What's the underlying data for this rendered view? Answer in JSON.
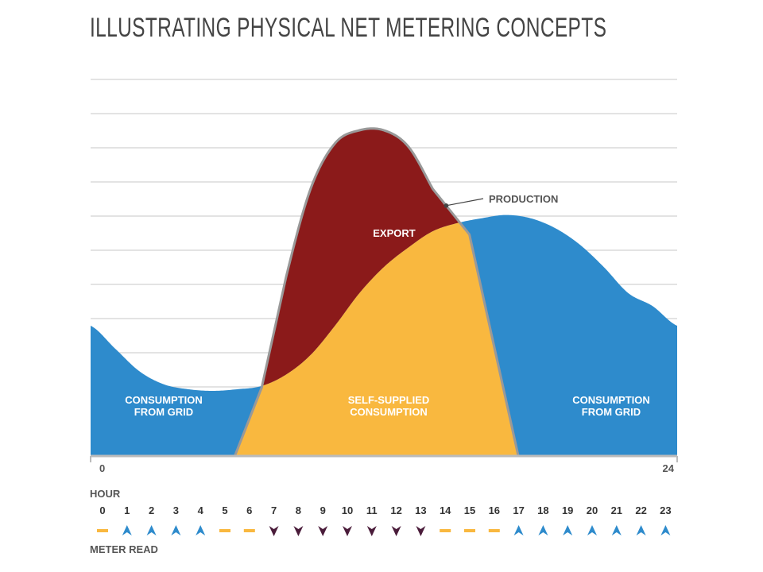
{
  "title": "ILLUSTRATING PHYSICAL NET METERING CONCEPTS",
  "chart_data": {
    "type": "area",
    "x_range": [
      0,
      24
    ],
    "x_start_label": "0",
    "x_end_label": "24",
    "gridlines": true,
    "series": [
      {
        "name": "CONSUMPTION",
        "x": [
          0,
          1,
          2,
          3,
          4,
          5,
          6,
          7,
          8,
          9,
          10,
          11,
          12,
          13,
          14,
          15,
          16,
          17,
          18,
          19,
          20,
          21,
          22,
          23,
          24
        ],
        "values": [
          40,
          33,
          26,
          22,
          20.5,
          20,
          20.5,
          21.5,
          25,
          31,
          40,
          50,
          58,
          64,
          69,
          71.5,
          73,
          74,
          73,
          70,
          65,
          58,
          50,
          46,
          40
        ]
      },
      {
        "name": "PRODUCTION",
        "x": [
          0,
          5.9,
          7,
          8,
          9,
          10,
          11,
          12,
          13,
          14,
          15.5,
          17.5,
          24
        ],
        "values": [
          0,
          0,
          21,
          55,
          82,
          96,
          100,
          100,
          95,
          82,
          68,
          0,
          0
        ]
      }
    ],
    "colors": {
      "consumption_from_grid": "#2e8bcc",
      "self_supplied": "#f9b83f",
      "export": "#8b1a1a",
      "production_line": "#999999"
    },
    "annotations": {
      "consumption_left": [
        "CONSUMPTION",
        "FROM GRID"
      ],
      "consumption_right": [
        "CONSUMPTION",
        "FROM GRID"
      ],
      "self_supplied": [
        "SELF-SUPPLIED",
        "CONSUMPTION"
      ],
      "export": "EXPORT",
      "production": "PRODUCTION"
    },
    "hour_axis": {
      "label": "HOUR",
      "hours": [
        "0",
        "1",
        "2",
        "3",
        "4",
        "5",
        "6",
        "7",
        "8",
        "9",
        "10",
        "11",
        "12",
        "13",
        "14",
        "15",
        "16",
        "17",
        "18",
        "19",
        "20",
        "21",
        "22",
        "23"
      ]
    },
    "meter_read": {
      "label": "METER READ",
      "states": [
        "flat",
        "up",
        "up",
        "up",
        "up",
        "flat",
        "flat",
        "down",
        "down",
        "down",
        "down",
        "down",
        "down",
        "down",
        "flat",
        "flat",
        "flat",
        "up",
        "up",
        "up",
        "up",
        "up",
        "up",
        "up"
      ],
      "colors": {
        "flat": "#f9b83f",
        "up": "#2e8bcc",
        "down": "#4a1c3a"
      }
    }
  }
}
